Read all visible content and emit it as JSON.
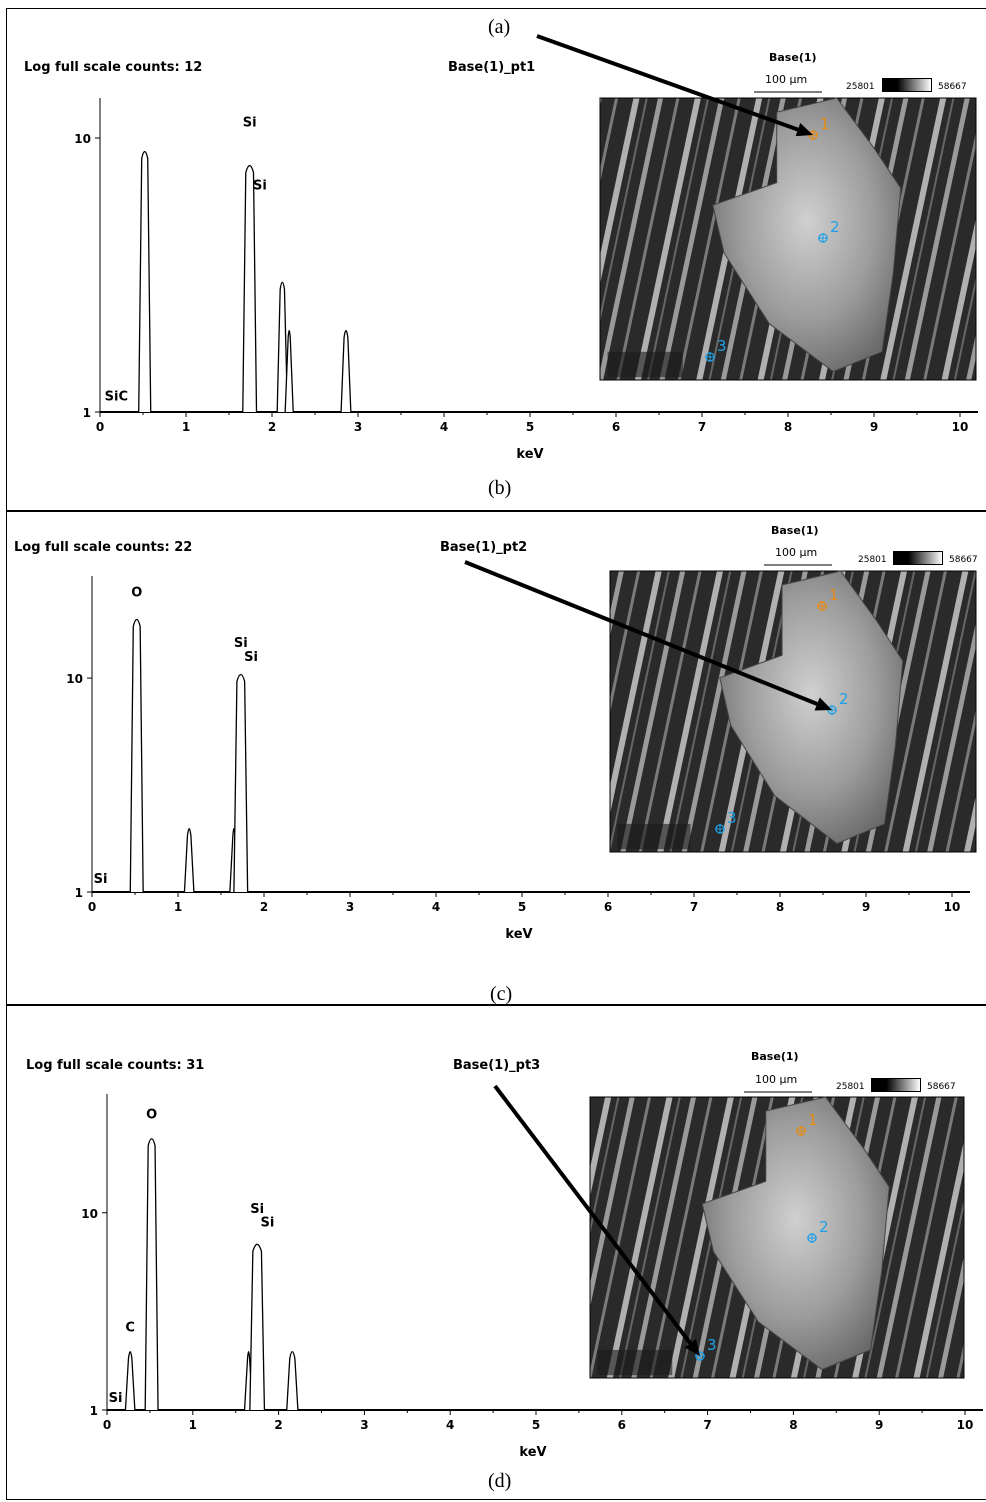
{
  "captions": [
    "(a)",
    "(b)",
    "(c)",
    "(d)"
  ],
  "colors": {
    "marker1": "#e88a10",
    "marker_other": "#1ea0e6",
    "axis": "#000000"
  },
  "sem_image": {
    "label": "Base(1)",
    "scale_bar": "100 µm",
    "colorbar_min": "25801",
    "colorbar_max": "58667",
    "markers": [
      "1",
      "2",
      "3"
    ]
  },
  "chart_data": [
    {
      "type": "line",
      "title": "Base(1)_pt1",
      "header": "Log full scale counts: 12",
      "xlabel": "keV",
      "yscale": "log",
      "xlim": [
        0,
        10.2
      ],
      "ylim": [
        1,
        14
      ],
      "xticks": [
        "0",
        "1",
        "2",
        "3",
        "4",
        "5",
        "6",
        "7",
        "8",
        "9",
        "10"
      ],
      "yticks": [
        "1",
        "10"
      ],
      "peaks": [
        {
          "x": 0.52,
          "y": 9,
          "w": 0.035
        },
        {
          "x": 1.74,
          "y": 8,
          "w": 0.045
        },
        {
          "x": 2.12,
          "y": 3,
          "w": 0.025
        },
        {
          "x": 2.2,
          "y": 2,
          "w": 0.012
        },
        {
          "x": 2.86,
          "y": 2,
          "w": 0.022
        }
      ],
      "peak_labels": [
        {
          "text": "Si",
          "x": 1.74,
          "y": 11
        },
        {
          "text": "Si",
          "x": 1.86,
          "y": 6.5
        },
        {
          "text": "SiC",
          "x": 0.19,
          "y": 1.1
        }
      ],
      "marker_point": "1"
    },
    {
      "type": "line",
      "title": "Base(1)_pt2",
      "header": "Log full scale counts: 22",
      "xlabel": "keV",
      "yscale": "log",
      "xlim": [
        0,
        10.2
      ],
      "ylim": [
        1,
        30
      ],
      "xticks": [
        "0",
        "1",
        "2",
        "3",
        "4",
        "5",
        "6",
        "7",
        "8",
        "9",
        "10"
      ],
      "yticks": [
        "1",
        "10"
      ],
      "peaks": [
        {
          "x": 0.52,
          "y": 19,
          "w": 0.04
        },
        {
          "x": 1.13,
          "y": 2,
          "w": 0.02
        },
        {
          "x": 1.65,
          "y": 2,
          "w": 0.012
        },
        {
          "x": 1.73,
          "y": 10.5,
          "w": 0.045
        }
      ],
      "peak_labels": [
        {
          "text": "O",
          "x": 0.52,
          "y": 24
        },
        {
          "text": "Si",
          "x": 1.73,
          "y": 14
        },
        {
          "text": "Si",
          "x": 1.85,
          "y": 12
        },
        {
          "text": "Si",
          "x": 0.1,
          "y": 1.1
        }
      ],
      "marker_point": "2"
    },
    {
      "type": "line",
      "title": "Base(1)_pt3",
      "header": "Log full scale counts: 31",
      "xlabel": "keV",
      "yscale": "log",
      "xlim": [
        0,
        10.2
      ],
      "ylim": [
        1,
        40
      ],
      "xticks": [
        "0",
        "1",
        "2",
        "3",
        "4",
        "5",
        "6",
        "7",
        "8",
        "9",
        "10"
      ],
      "yticks": [
        "1",
        "10"
      ],
      "peaks": [
        {
          "x": 0.27,
          "y": 2,
          "w": 0.02
        },
        {
          "x": 0.52,
          "y": 24,
          "w": 0.04
        },
        {
          "x": 1.65,
          "y": 2,
          "w": 0.012
        },
        {
          "x": 1.75,
          "y": 7,
          "w": 0.05
        },
        {
          "x": 2.16,
          "y": 2,
          "w": 0.03
        }
      ],
      "peak_labels": [
        {
          "text": "O",
          "x": 0.52,
          "y": 30
        },
        {
          "text": "Si",
          "x": 1.75,
          "y": 10
        },
        {
          "text": "Si",
          "x": 1.87,
          "y": 8.5
        },
        {
          "text": "C",
          "x": 0.27,
          "y": 2.5
        },
        {
          "text": "Si",
          "x": 0.1,
          "y": 1.1
        }
      ],
      "marker_point": "3"
    }
  ]
}
